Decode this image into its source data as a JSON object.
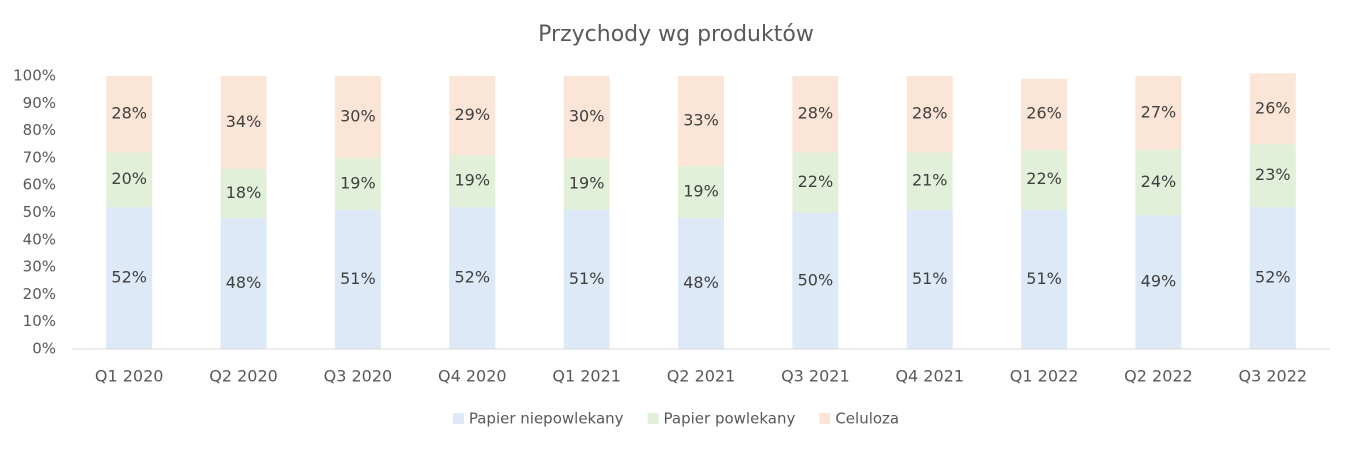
{
  "chart_data": {
    "type": "stacked_bar",
    "title": "Przychody wg produktów",
    "categories": [
      "Q1 2020",
      "Q2 2020",
      "Q3 2020",
      "Q4 2020",
      "Q1 2021",
      "Q2 2021",
      "Q3 2021",
      "Q4 2021",
      "Q1 2022",
      "Q2 2022",
      "Q3 2022"
    ],
    "series": [
      {
        "name": "Papier niepowlekany",
        "color": "#dde9f6",
        "values": [
          52,
          48,
          51,
          52,
          51,
          48,
          50,
          51,
          51,
          49,
          52
        ],
        "value_labels": [
          "52%",
          "48%",
          "51%",
          "52%",
          "51%",
          "48%",
          "50%",
          "51%",
          "51%",
          "49%",
          "52%"
        ]
      },
      {
        "name": "Papier powlekany",
        "color": "#e2f0d9",
        "values": [
          20,
          18,
          19,
          19,
          19,
          19,
          22,
          21,
          22,
          24,
          23
        ],
        "value_labels": [
          "20%",
          "18%",
          "19%",
          "19%",
          "19%",
          "19%",
          "22%",
          "21%",
          "22%",
          "24%",
          "23%"
        ]
      },
      {
        "name": "Celuloza",
        "color": "#fbe5d6",
        "values": [
          28,
          34,
          30,
          29,
          30,
          33,
          28,
          28,
          26,
          27,
          26
        ],
        "value_labels": [
          "28%",
          "34%",
          "30%",
          "29%",
          "30%",
          "33%",
          "28%",
          "28%",
          "26%",
          "27%",
          "26%"
        ]
      }
    ],
    "ylim": [
      0,
      100
    ],
    "yticks": [
      {
        "value": 0,
        "label": "0%"
      },
      {
        "value": 10,
        "label": "10%"
      },
      {
        "value": 20,
        "label": "20%"
      },
      {
        "value": 30,
        "label": "30%"
      },
      {
        "value": 40,
        "label": "40%"
      },
      {
        "value": 50,
        "label": "50%"
      },
      {
        "value": 60,
        "label": "60%"
      },
      {
        "value": 70,
        "label": "70%"
      },
      {
        "value": 80,
        "label": "80%"
      },
      {
        "value": 90,
        "label": "90%"
      },
      {
        "value": 100,
        "label": "100%"
      }
    ],
    "legend": "bottom"
  }
}
